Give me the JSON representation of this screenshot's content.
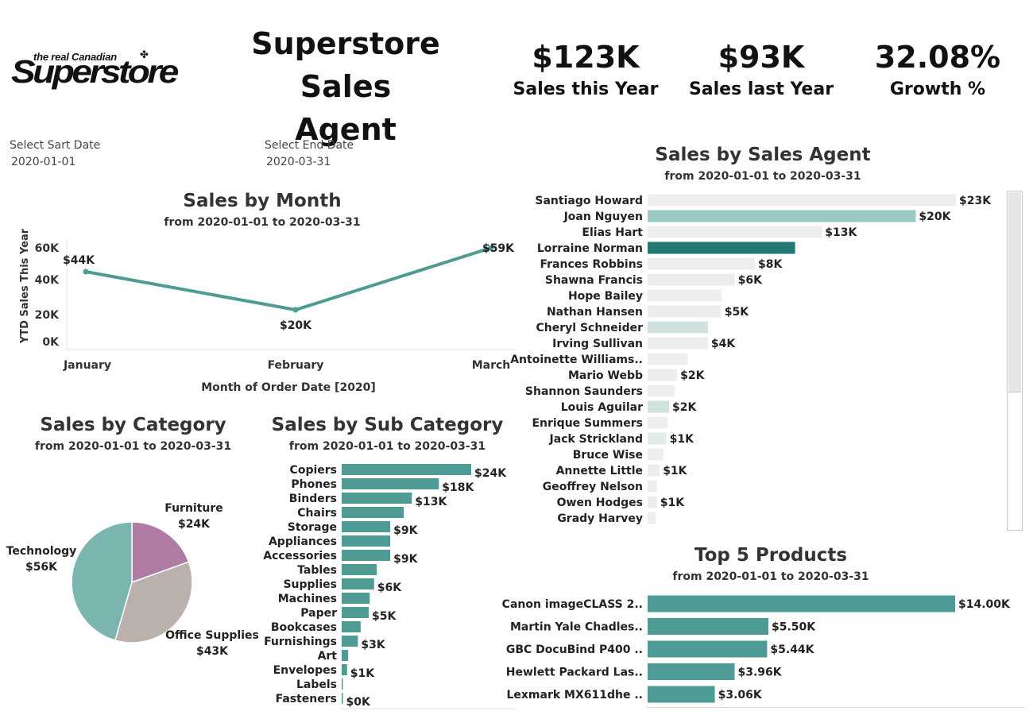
{
  "logo": {
    "tagline": "the real Canadian",
    "leaf": "✤",
    "wordmark": "Superstore"
  },
  "header": {
    "title_line1": "Superstore Sales",
    "title_line2": "Agent"
  },
  "kpis": [
    {
      "value": "$123K",
      "label": "Sales this Year"
    },
    {
      "value": "$93K",
      "label": "Sales last Year"
    },
    {
      "value": "32.08%",
      "label": "Growth %"
    }
  ],
  "filters": {
    "start_label": "Select Sart Date",
    "start_value": "2020-01-01",
    "end_label": "Select End Date",
    "end_value": "2020-03-31"
  },
  "chart_data": [
    {
      "id": "month",
      "type": "line",
      "title": "Sales by Month",
      "subtitle": "from 2020-01-01  to 2020-03-31",
      "xlabel": "Month of Order Date [2020]",
      "ylabel": "YTD Sales This Year",
      "categories": [
        "January",
        "February",
        "March"
      ],
      "values": [
        44,
        20,
        59
      ],
      "value_labels": [
        "$44K",
        "$20K",
        "$59K"
      ],
      "yticks": [
        "0K",
        "20K",
        "40K",
        "60K"
      ],
      "ylim": [
        0,
        60
      ],
      "color": "#4e9b95"
    },
    {
      "id": "category",
      "type": "pie",
      "title": "Sales by Category",
      "subtitle": "from 2020-01-01  to 2020-03-31",
      "slices": [
        {
          "name": "Furniture",
          "value": 24,
          "label": "$24K",
          "color": "#b07ca4"
        },
        {
          "name": "Office Supplies",
          "value": 43,
          "label": "$43K",
          "color": "#bab1ad"
        },
        {
          "name": "Technology",
          "value": 56,
          "label": "$56K",
          "color": "#7ab5b0"
        }
      ]
    },
    {
      "id": "subcategory",
      "type": "bar",
      "orientation": "horizontal",
      "title": "Sales by Sub Category",
      "subtitle": "from 2020-01-01  to 2020-03-31",
      "categories": [
        "Copiers",
        "Phones",
        "Binders",
        "Chairs",
        "Storage",
        "Appliances",
        "Accessories",
        "Tables",
        "Supplies",
        "Machines",
        "Paper",
        "Bookcases",
        "Furnishings",
        "Art",
        "Envelopes",
        "Labels",
        "Fasteners"
      ],
      "values": [
        24,
        18,
        13,
        11.5,
        9,
        9,
        9,
        6.5,
        6,
        5.2,
        5,
        3.5,
        3,
        1.2,
        1,
        0.2,
        0.1
      ],
      "value_labels": [
        "$24K",
        "$18K",
        "$13K",
        "",
        "$9K",
        "",
        "$9K",
        "",
        "$6K",
        "",
        "$5K",
        "",
        "$3K",
        "",
        "$1K",
        "",
        "$0K"
      ],
      "color": "#4e9b95"
    },
    {
      "id": "agent",
      "type": "bar",
      "orientation": "horizontal",
      "title": "Sales by Sales Agent",
      "subtitle": "from 2020-01-01  to 2020-03-31",
      "categories": [
        "Santiago Howard",
        "Joan Nguyen",
        "Elias Hart",
        "Lorraine Norman",
        "Frances Robbins",
        "Shawna Francis",
        "Hope Bailey",
        "Nathan Hansen",
        "Cheryl Schneider",
        "Irving Sullivan",
        "Antoinette Williams..",
        "Mario Webb",
        "Shannon Saunders",
        "Louis Aguilar",
        "Enrique Summers",
        "Jack Strickland",
        "Bruce Wise",
        "Annette Little",
        "Geoffrey Nelson",
        "Owen Hodges",
        "Grady Harvey"
      ],
      "values": [
        23,
        20,
        13,
        11,
        8,
        6.5,
        5.5,
        5.5,
        4.5,
        4.5,
        3,
        2.2,
        2,
        1.6,
        1.5,
        1.4,
        1.2,
        0.9,
        0.7,
        0.7,
        0.6
      ],
      "value_labels": [
        "$23K",
        "$20K",
        "$13K",
        "",
        "$8K",
        "$6K",
        "",
        "$5K",
        "",
        "$4K",
        "",
        "$2K",
        "",
        "$2K",
        "",
        "$1K",
        "",
        "$1K",
        "",
        "$1K",
        ""
      ],
      "colors": [
        "#eceeee",
        "#98c9c6",
        "#eceeee",
        "#237a75",
        "#eceeee",
        "#eceeee",
        "#eceeee",
        "#eceeee",
        "#cfe2e0",
        "#eceeee",
        "#eceeee",
        "#eceeee",
        "#eceeee",
        "#cfe2e0",
        "#eceeee",
        "#e4eceb",
        "#eceeee",
        "#eceeee",
        "#eceeee",
        "#eceeee",
        "#eceeee"
      ]
    },
    {
      "id": "products",
      "type": "bar",
      "orientation": "horizontal",
      "title": "Top 5 Products",
      "subtitle": "from 2020-01-01  to 2020-03-31",
      "categories": [
        "Canon imageCLASS 2..",
        "Martin Yale Chadles..",
        "GBC DocuBind P400 ..",
        "Hewlett Packard Las..",
        "Lexmark MX611dhe .."
      ],
      "values": [
        14.0,
        5.5,
        5.44,
        3.96,
        3.06
      ],
      "value_labels": [
        "$14.00K",
        "$5.50K",
        "$5.44K",
        "$3.96K",
        "$3.06K"
      ],
      "color": "#4e9b95"
    }
  ]
}
